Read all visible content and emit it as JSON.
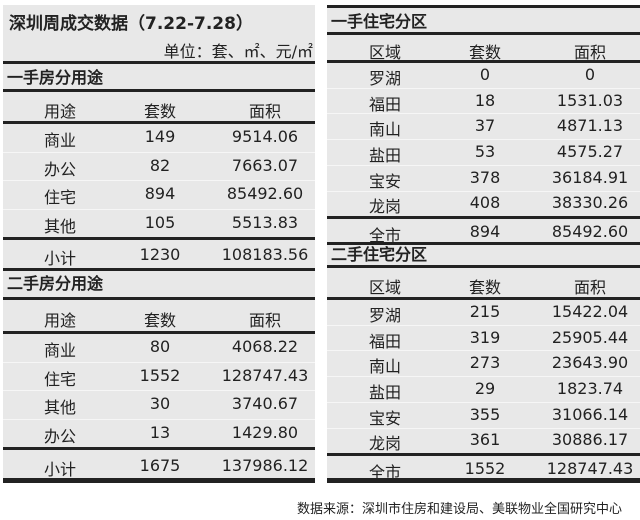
{
  "title": "深圳周成交数据（7.22-7.28）",
  "unit": "单位：套、㎡、元/㎡",
  "left_tables": [
    {
      "section": "一手房分用途",
      "headers": [
        "用途",
        "套数",
        "面积"
      ],
      "rows": [
        [
          "商业",
          "149",
          "9514.06"
        ],
        [
          "办公",
          "82",
          "7663.07"
        ],
        [
          "住宅",
          "894",
          "85492.60"
        ],
        [
          "其他",
          "105",
          "5513.83"
        ]
      ],
      "total": [
        "小计",
        "1230",
        "108183.56"
      ]
    },
    {
      "section": "二手房分用途",
      "headers": [
        "用途",
        "套数",
        "面积"
      ],
      "rows": [
        [
          "商业",
          "80",
          "4068.22"
        ],
        [
          "住宅",
          "1552",
          "128747.43"
        ],
        [
          "其他",
          "30",
          "3740.67"
        ],
        [
          "办公",
          "13",
          "1429.80"
        ]
      ],
      "total": [
        "小计",
        "1675",
        "137986.12"
      ]
    }
  ],
  "right_tables": [
    {
      "section": "一手住宅分区",
      "headers": [
        "区域",
        "套数",
        "面积"
      ],
      "rows": [
        [
          "罗湖",
          "0",
          "0"
        ],
        [
          "福田",
          "18",
          "1531.03"
        ],
        [
          "南山",
          "37",
          "4871.13"
        ],
        [
          "盐田",
          "53",
          "4575.27"
        ],
        [
          "宝安",
          "378",
          "36184.91"
        ],
        [
          "龙岗",
          "408",
          "38330.26"
        ]
      ],
      "total": [
        "全市",
        "894",
        "85492.60"
      ]
    },
    {
      "section": "二手住宅分区",
      "headers": [
        "区域",
        "套数",
        "面积"
      ],
      "rows": [
        [
          "罗湖",
          "215",
          "15422.04"
        ],
        [
          "福田",
          "319",
          "25905.44"
        ],
        [
          "南山",
          "273",
          "23643.90"
        ],
        [
          "盐田",
          "29",
          "1823.74"
        ],
        [
          "宝安",
          "355",
          "31066.14"
        ],
        [
          "龙岗",
          "361",
          "30886.17"
        ]
      ],
      "total": [
        "全市",
        "1552",
        "128747.43"
      ]
    }
  ],
  "source": "数据来源：深圳市住房和建设局、美联物业全国研究中心"
}
